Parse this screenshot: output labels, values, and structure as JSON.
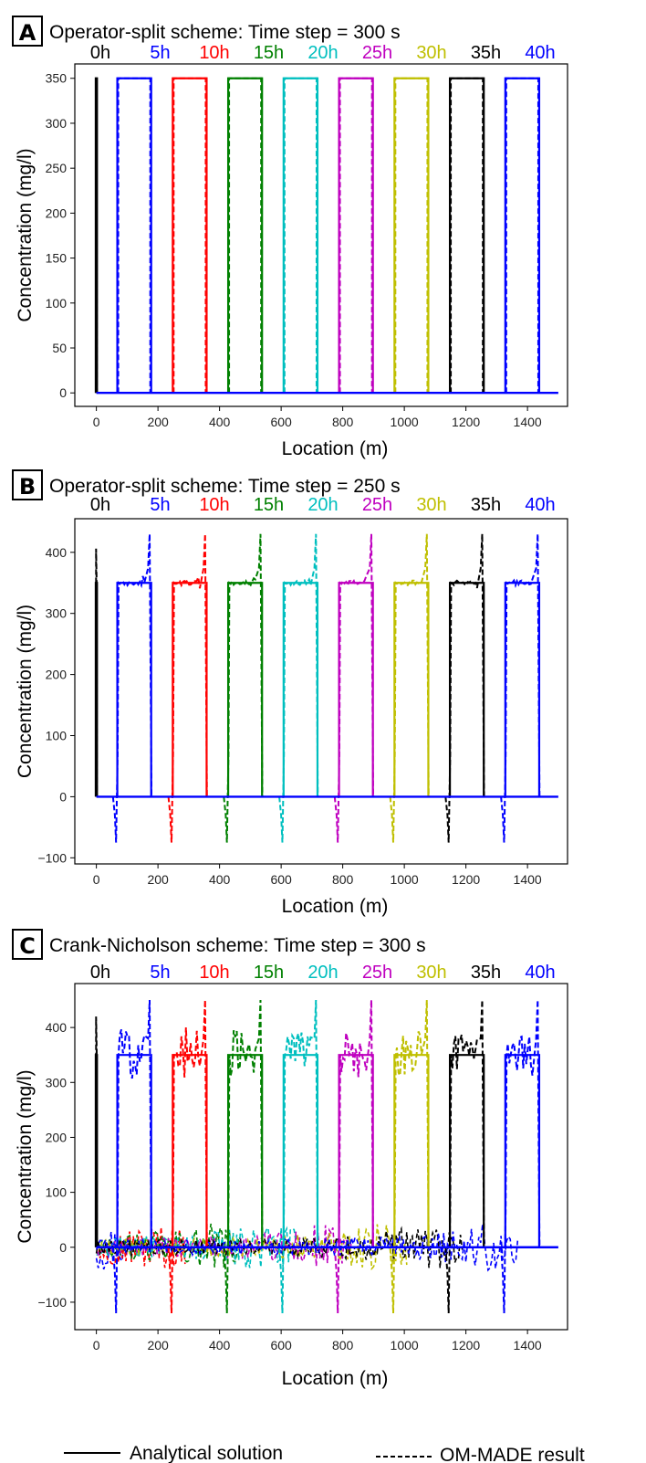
{
  "chart_data": [
    {
      "type": "line",
      "panel": "A",
      "title": "Operator-split scheme: Time step = 300 s",
      "xlabel": "Location (m)",
      "ylabel": "Concentration (mg/l)",
      "xlim": [
        -70,
        1530
      ],
      "ylim": [
        -15,
        366
      ],
      "xticks": [
        0,
        200,
        400,
        600,
        800,
        1000,
        1200,
        1400
      ],
      "yticks": [
        0,
        50,
        100,
        150,
        200,
        250,
        300,
        350
      ],
      "grid": false,
      "plateau": 350,
      "overshoot": 0,
      "undershoot": 0,
      "noise": 0,
      "series": [
        {
          "name": "0h",
          "color": "#000000",
          "x_start": 0,
          "x_end": 0
        },
        {
          "name": "5h",
          "color": "#0000ff",
          "x_start": 68,
          "x_end": 178
        },
        {
          "name": "10h",
          "color": "#ff0000",
          "x_start": 248,
          "x_end": 358
        },
        {
          "name": "15h",
          "color": "#008000",
          "x_start": 428,
          "x_end": 538
        },
        {
          "name": "20h",
          "color": "#00bfbf",
          "x_start": 608,
          "x_end": 718
        },
        {
          "name": "25h",
          "color": "#bf00bf",
          "x_start": 788,
          "x_end": 898
        },
        {
          "name": "30h",
          "color": "#bfbf00",
          "x_start": 968,
          "x_end": 1078
        },
        {
          "name": "35h",
          "color": "#000000",
          "x_start": 1148,
          "x_end": 1258
        },
        {
          "name": "40h",
          "color": "#0000ff",
          "x_start": 1328,
          "x_end": 1438
        }
      ]
    },
    {
      "type": "line",
      "panel": "B",
      "title": "Operator-split scheme: Time step = 250 s",
      "xlabel": "Location (m)",
      "ylabel": "Concentration (mg/l)",
      "xlim": [
        -70,
        1530
      ],
      "ylim": [
        -110,
        455
      ],
      "xticks": [
        0,
        200,
        400,
        600,
        800,
        1000,
        1200,
        1400
      ],
      "yticks": [
        -100,
        0,
        100,
        200,
        300,
        400
      ],
      "grid": false,
      "plateau": 350,
      "overshoot": 430,
      "undershoot": -75,
      "noise": 0,
      "series": [
        {
          "name": "0h",
          "color": "#000000",
          "x_start": 0,
          "x_end": 0
        },
        {
          "name": "5h",
          "color": "#0000ff",
          "x_start": 68,
          "x_end": 178
        },
        {
          "name": "10h",
          "color": "#ff0000",
          "x_start": 248,
          "x_end": 358
        },
        {
          "name": "15h",
          "color": "#008000",
          "x_start": 428,
          "x_end": 538
        },
        {
          "name": "20h",
          "color": "#00bfbf",
          "x_start": 608,
          "x_end": 718
        },
        {
          "name": "25h",
          "color": "#bf00bf",
          "x_start": 788,
          "x_end": 898
        },
        {
          "name": "30h",
          "color": "#bfbf00",
          "x_start": 968,
          "x_end": 1078
        },
        {
          "name": "35h",
          "color": "#000000",
          "x_start": 1148,
          "x_end": 1258
        },
        {
          "name": "40h",
          "color": "#0000ff",
          "x_start": 1328,
          "x_end": 1438
        }
      ]
    },
    {
      "type": "line",
      "panel": "C",
      "title": "Crank-Nicholson scheme: Time step = 300 s",
      "xlabel": "Location (m)",
      "ylabel": "Concentration (mg/l)",
      "xlim": [
        -70,
        1530
      ],
      "ylim": [
        -150,
        480
      ],
      "xticks": [
        0,
        200,
        400,
        600,
        800,
        1000,
        1200,
        1400
      ],
      "yticks": [
        -100,
        0,
        100,
        200,
        300,
        400
      ],
      "grid": false,
      "plateau": 350,
      "overshoot": 450,
      "undershoot": -120,
      "noise": 45,
      "series": [
        {
          "name": "0h",
          "color": "#000000",
          "x_start": 0,
          "x_end": 0
        },
        {
          "name": "5h",
          "color": "#0000ff",
          "x_start": 68,
          "x_end": 178
        },
        {
          "name": "10h",
          "color": "#ff0000",
          "x_start": 248,
          "x_end": 358
        },
        {
          "name": "15h",
          "color": "#008000",
          "x_start": 428,
          "x_end": 538
        },
        {
          "name": "20h",
          "color": "#00bfbf",
          "x_start": 608,
          "x_end": 718
        },
        {
          "name": "25h",
          "color": "#bf00bf",
          "x_start": 788,
          "x_end": 898
        },
        {
          "name": "30h",
          "color": "#bfbf00",
          "x_start": 968,
          "x_end": 1078
        },
        {
          "name": "35h",
          "color": "#000000",
          "x_start": 1148,
          "x_end": 1258
        },
        {
          "name": "40h",
          "color": "#0000ff",
          "x_start": 1328,
          "x_end": 1438
        }
      ]
    }
  ],
  "legend": {
    "solid_label": "Analytical solution",
    "dashed_label": "OM-MADE result"
  }
}
